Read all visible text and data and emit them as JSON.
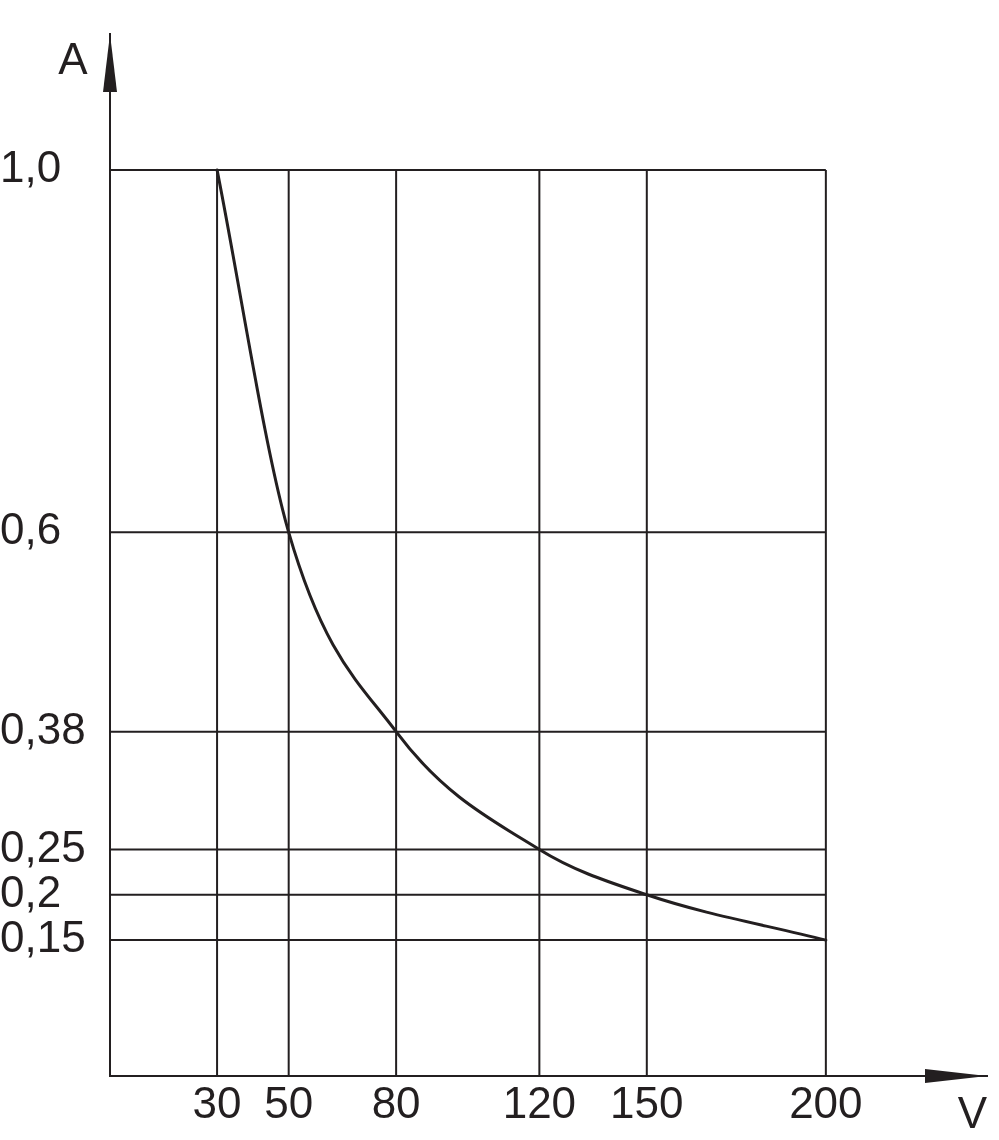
{
  "chart_data": {
    "type": "line",
    "xlabel": "V",
    "ylabel": "A",
    "x": [
      30,
      50,
      80,
      120,
      150,
      200
    ],
    "series": [
      {
        "color": "#231f20",
        "values": [
          1.0,
          0.6,
          0.38,
          0.25,
          0.2,
          0.15
        ]
      }
    ],
    "xlim": [
      0,
      245
    ],
    "ylim": [
      0,
      1.15
    ],
    "xticks": [
      30,
      50,
      80,
      120,
      150,
      200
    ],
    "yticks": [
      {
        "value": 0.15,
        "label": "0,15"
      },
      {
        "value": 0.2,
        "label": "0,2"
      },
      {
        "value": 0.25,
        "label": "0,25"
      },
      {
        "value": 0.38,
        "label": "0,38"
      },
      {
        "value": 0.6,
        "label": "0,6"
      },
      {
        "value": 1.0,
        "label": "1,0"
      }
    ],
    "grid": true,
    "line_style": "solid"
  }
}
